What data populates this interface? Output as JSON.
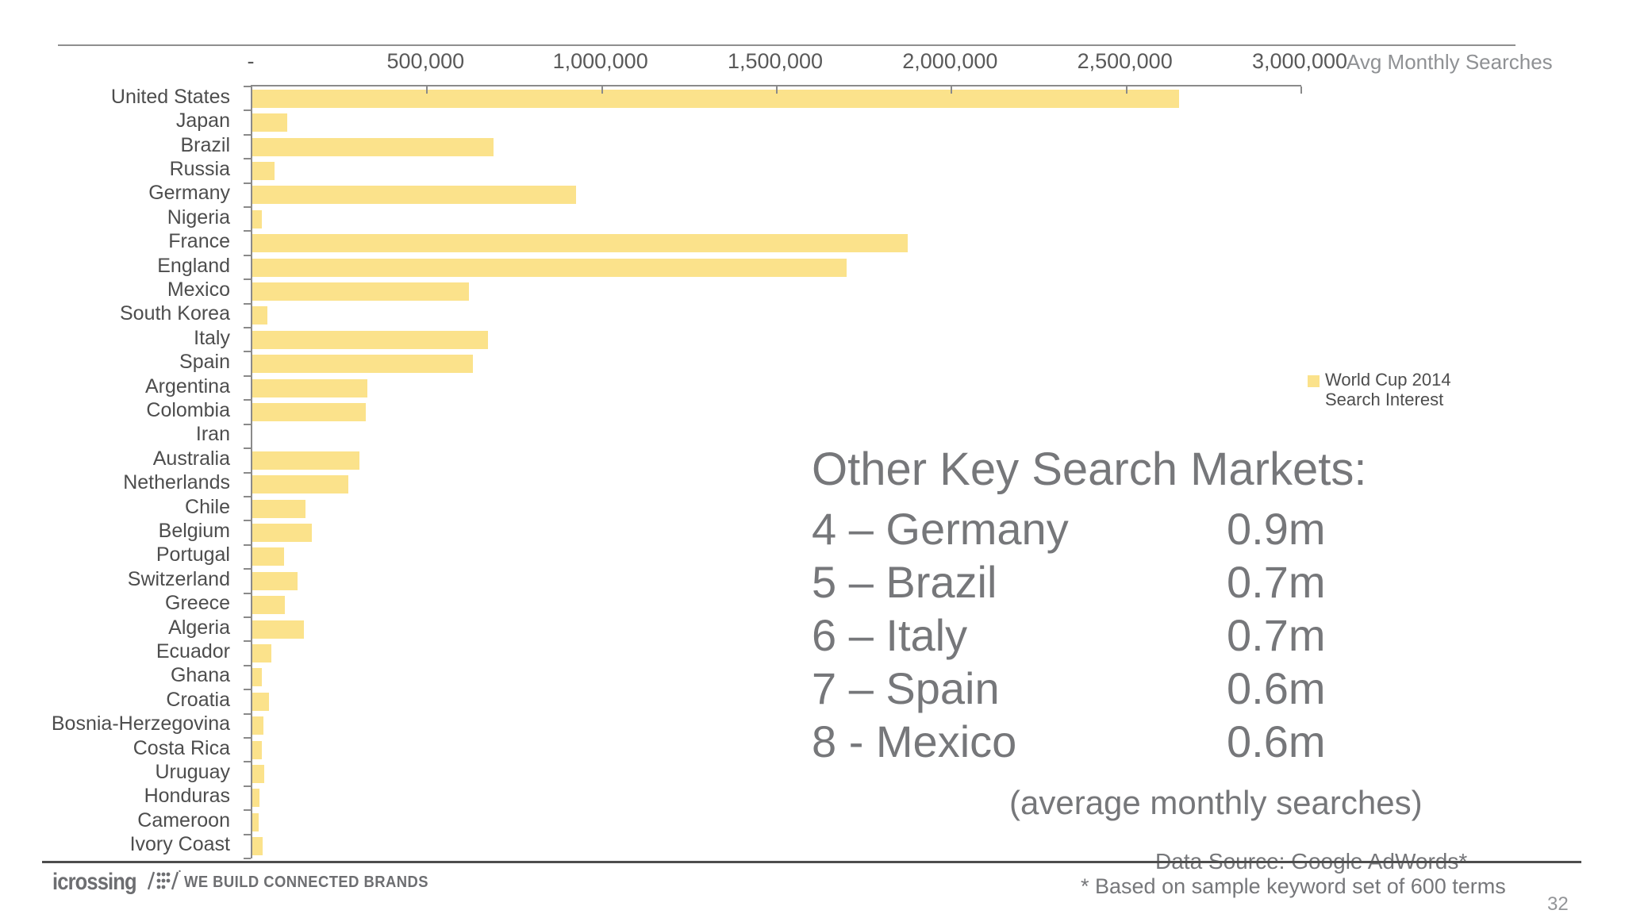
{
  "colors": {
    "bar": "#fbe28b",
    "axis": "#8a8a8a",
    "text_muted": "#76777a",
    "label": "#4d4d4d"
  },
  "header": {
    "axis_title": "Avg Monthly Searches"
  },
  "chart_data": {
    "type": "bar",
    "orientation": "horizontal",
    "xlabel": "Avg Monthly Searches",
    "ylabel": "",
    "xlim": [
      0,
      3000000
    ],
    "grid": false,
    "x_ticks": [
      "-",
      "500,000",
      "1,000,000",
      "1,500,000",
      "2,000,000",
      "2,500,000",
      "3,000,000"
    ],
    "legend_label": "World Cup 2014 Search Interest",
    "categories": [
      "United States",
      "Japan",
      "Brazil",
      "Russia",
      "Germany",
      "Nigeria",
      "France",
      "England",
      "Mexico",
      "South Korea",
      "Italy",
      "Spain",
      "Argentina",
      "Colombia",
      "Iran",
      "Australia",
      "Netherlands",
      "Chile",
      "Belgium",
      "Portugal",
      "Switzerland",
      "Greece",
      "Algeria",
      "Ecuador",
      "Ghana",
      "Croatia",
      "Bosnia-Herzegovina",
      "Costa Rica",
      "Uruguay",
      "Honduras",
      "Cameroon",
      "Ivory Coast"
    ],
    "values": [
      2650000,
      100000,
      690000,
      63000,
      925000,
      27000,
      1875000,
      1700000,
      620000,
      43000,
      675000,
      630000,
      330000,
      325000,
      0,
      306000,
      275000,
      152000,
      170000,
      91000,
      129000,
      92000,
      147000,
      54000,
      28000,
      48000,
      32000,
      28000,
      33000,
      20000,
      19000,
      30000
    ]
  },
  "legend": {
    "line1": "World Cup 2014",
    "line2": "Search Interest"
  },
  "panel": {
    "title": "Other Key Search Markets:",
    "rows": [
      {
        "rank_label": "4 – Germany",
        "value": "0.9m"
      },
      {
        "rank_label": "5 – Brazil",
        "value": "0.7m"
      },
      {
        "rank_label": "6 – Italy",
        "value": "0.7m"
      },
      {
        "rank_label": "7 – Spain",
        "value": "0.6m"
      },
      {
        "rank_label": "8 - Mexico",
        "value": "0.6m"
      }
    ],
    "caption": "(average monthly searches)",
    "source": "Data Source: Google AdWords*"
  },
  "footer": {
    "logo_text": "icrossing",
    "tagline": "WE BUILD CONNECTED BRANDS",
    "footnote": "* Based on sample keyword set of 600 terms",
    "page_number": "32"
  }
}
